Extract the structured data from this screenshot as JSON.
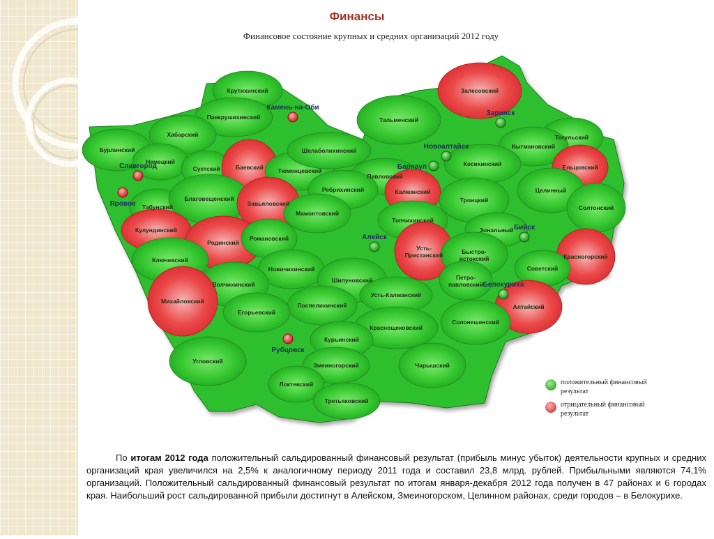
{
  "page": {
    "title": "Финансы",
    "subtitle": "Финансовое состояние крупных и средних организаций 2012 году"
  },
  "colors": {
    "positive": "#2fbf2f",
    "negative": "#e8383a",
    "title": "#a03525",
    "city_label": "#1f2f58"
  },
  "map": {
    "districts": [
      {
        "name": "Крутихинский",
        "result": "positive"
      },
      {
        "name": "Панкрушихинский",
        "result": "positive"
      },
      {
        "name": "Хабарский",
        "result": "positive"
      },
      {
        "name": "Бурлинский",
        "result": "positive"
      },
      {
        "name": "Немецкий",
        "result": "positive"
      },
      {
        "name": "Суетский",
        "result": "positive"
      },
      {
        "name": "Баевский",
        "result": "negative"
      },
      {
        "name": "Тюменцевский",
        "result": "positive"
      },
      {
        "name": "Шелаболихинский",
        "result": "positive"
      },
      {
        "name": "Тальменский",
        "result": "positive"
      },
      {
        "name": "Залесовский",
        "result": "negative"
      },
      {
        "name": "Тогульский",
        "result": "positive"
      },
      {
        "name": "Кытмановский",
        "result": "positive"
      },
      {
        "name": "Косихинский",
        "result": "positive"
      },
      {
        "name": "Ельцовский",
        "result": "negative"
      },
      {
        "name": "Павловский",
        "result": "positive"
      },
      {
        "name": "Ребрихинский",
        "result": "positive"
      },
      {
        "name": "Калманский",
        "result": "negative"
      },
      {
        "name": "Троицкий",
        "result": "positive"
      },
      {
        "name": "Целинный",
        "result": "positive"
      },
      {
        "name": "Солтонский",
        "result": "positive"
      },
      {
        "name": "Табунский",
        "result": "positive"
      },
      {
        "name": "Благовещенский",
        "result": "positive"
      },
      {
        "name": "Завьяловский",
        "result": "negative"
      },
      {
        "name": "Мамонтовский",
        "result": "positive"
      },
      {
        "name": "Топчихинский",
        "result": "positive"
      },
      {
        "name": "Зональный",
        "result": "positive"
      },
      {
        "name": "Кулундинский",
        "result": "negative"
      },
      {
        "name": "Родинский",
        "result": "negative"
      },
      {
        "name": "Романовский",
        "result": "positive"
      },
      {
        "name": "Усть-Пристанский",
        "result": "negative"
      },
      {
        "name": "Быстро-истокский",
        "result": "positive"
      },
      {
        "name": "Красногорский",
        "result": "negative"
      },
      {
        "name": "Ключевский",
        "result": "positive"
      },
      {
        "name": "Новичихинский",
        "result": "positive"
      },
      {
        "name": "Шипуновский",
        "result": "positive"
      },
      {
        "name": "Петро-павловский",
        "result": "positive"
      },
      {
        "name": "Советский",
        "result": "positive"
      },
      {
        "name": "Волчихинский",
        "result": "positive"
      },
      {
        "name": "Усть-Калманский",
        "result": "positive"
      },
      {
        "name": "Михайловский",
        "result": "negative"
      },
      {
        "name": "Поспелихинский",
        "result": "positive"
      },
      {
        "name": "Алтайский",
        "result": "negative"
      },
      {
        "name": "Егорьевский",
        "result": "positive"
      },
      {
        "name": "Солонешенский",
        "result": "positive"
      },
      {
        "name": "Краснощековский",
        "result": "positive"
      },
      {
        "name": "Курьинский",
        "result": "positive"
      },
      {
        "name": "Угловский",
        "result": "positive"
      },
      {
        "name": "Змеиногорский",
        "result": "positive"
      },
      {
        "name": "Чарышский",
        "result": "positive"
      },
      {
        "name": "Локтевский",
        "result": "positive"
      },
      {
        "name": "Третьяковский",
        "result": "positive"
      }
    ],
    "cities": [
      {
        "name": "Камень-на-Оби",
        "result": "negative"
      },
      {
        "name": "Славгород",
        "result": "negative"
      },
      {
        "name": "Яровое",
        "result": "negative"
      },
      {
        "name": "Заринск",
        "result": "positive"
      },
      {
        "name": "Новоалтайск",
        "result": "positive"
      },
      {
        "name": "Барнаул",
        "result": "positive"
      },
      {
        "name": "Алейск",
        "result": "positive"
      },
      {
        "name": "Бийск",
        "result": "positive"
      },
      {
        "name": "Белокуриха",
        "result": "positive"
      },
      {
        "name": "Рубцовск",
        "result": "negative"
      }
    ]
  },
  "legend": {
    "positive": "положительный финансовый результат",
    "negative": "отрицательный финансовый результат"
  },
  "text": {
    "p_start": "По",
    "p_bold": "итогам 2012 года",
    "p_rest": "положительный сальдированный финансовый результат (прибыль минус убыток) деятельности крупных и средних организаций края увеличился на 2,5% к аналогичному периоду 2011 года и составил 23,8 млрд. рублей. Прибыльными являются 74,1% организаций. Положительный сальдированный финансовый результат по итогам января-декабря 2012 года получен в 47 районах и 6 городах края. Наибольший рост сальдированной прибыли достигнут в Алейском, Змеиногорском, Целинном районах, среди городов – в Белокурихе."
  }
}
